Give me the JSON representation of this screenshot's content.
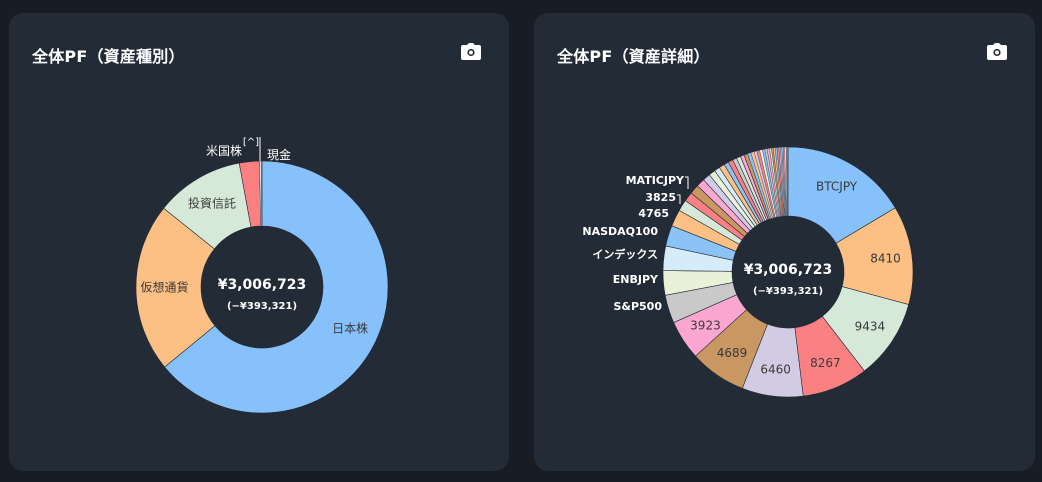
{
  "cards": [
    {
      "title": "全体PF（資産種別）",
      "camera_icon": "camera-icon"
    },
    {
      "title": "全体PF（資産詳細）",
      "camera_icon": "camera-icon"
    }
  ],
  "chart_data": [
    {
      "type": "donut",
      "title": "全体PF（資産種別）",
      "center_label": "¥3,006,723",
      "center_sublabel": "(−¥393,321)",
      "series": [
        {
          "label": "日本株",
          "value": 62.0,
          "color": "#87c1fc"
        },
        {
          "label": "仮想通貨",
          "value": 21.0,
          "color": "#fdc084"
        },
        {
          "label": "投資信託",
          "value": 11.0,
          "color": "#d6e8d8"
        },
        {
          "label": "米国株",
          "value": 2.5,
          "color": "#fb8082"
        },
        {
          "label": "[^]",
          "value": 0.2,
          "color": "#e8e8e8"
        },
        {
          "label": "現金",
          "value": 0.1,
          "color": "#aaaaaa"
        }
      ]
    },
    {
      "type": "donut",
      "title": "全体PF（資産詳細）",
      "center_label": "¥3,006,723",
      "center_sublabel": "(−¥393,321)",
      "series": [
        {
          "label": "BTCJPY",
          "value": 13.5,
          "color": "#87c1fc"
        },
        {
          "label": "8410",
          "value": 10.5,
          "color": "#fdc084"
        },
        {
          "label": "9434",
          "value": 8.5,
          "color": "#d6e8d8"
        },
        {
          "label": "8267",
          "value": 7.0,
          "color": "#fb8082"
        },
        {
          "label": "6460",
          "value": 6.5,
          "color": "#d2cbe4"
        },
        {
          "label": "4689",
          "value": 6.0,
          "color": "#c99762"
        },
        {
          "label": "3923",
          "value": 4.2,
          "color": "#fca6d2"
        },
        {
          "label": "S&P500",
          "value": 3.0,
          "color": "#c9c9c9"
        },
        {
          "label": "ENBJPY",
          "value": 2.6,
          "color": "#e9f2d9"
        },
        {
          "label": "インデックス",
          "value": 2.6,
          "color": "#d6ecf8"
        },
        {
          "label": "NASDAQ100",
          "value": 2.2,
          "color": "#8cc3f6"
        },
        {
          "label": "4765",
          "value": 1.8,
          "color": "#fdc084"
        },
        {
          "label": "",
          "value": 1.2,
          "color": "#d6e8d8"
        },
        {
          "label": "3825",
          "value": 1.0,
          "color": "#fb8082"
        },
        {
          "label": "",
          "value": 1.0,
          "color": "#c99762"
        },
        {
          "label": "MATICJPY",
          "value": 0.9,
          "color": "#fca6d2"
        },
        {
          "label": "",
          "value": 0.8,
          "color": "#d2cbe4"
        },
        {
          "label": "",
          "value": 0.7,
          "color": "#e9f2d9"
        },
        {
          "label": "",
          "value": 0.6,
          "color": "#d6ecf8"
        },
        {
          "label": "",
          "value": 0.6,
          "color": "#fdc084"
        },
        {
          "label": "",
          "value": 0.5,
          "color": "#8cc3f6"
        },
        {
          "label": "",
          "value": 0.5,
          "color": "#fb8082"
        },
        {
          "label": "",
          "value": 0.45,
          "color": "#c9c9c9"
        },
        {
          "label": "",
          "value": 0.45,
          "color": "#d6e8d8"
        },
        {
          "label": "",
          "value": 0.4,
          "color": "#fca6d2"
        },
        {
          "label": "",
          "value": 0.4,
          "color": "#c99762"
        },
        {
          "label": "",
          "value": 0.35,
          "color": "#87c1fc"
        },
        {
          "label": "",
          "value": 0.35,
          "color": "#fdc084"
        },
        {
          "label": "",
          "value": 0.3,
          "color": "#d2cbe4"
        },
        {
          "label": "",
          "value": 0.3,
          "color": "#fb8082"
        },
        {
          "label": "",
          "value": 0.3,
          "color": "#e9f2d9"
        },
        {
          "label": "",
          "value": 0.25,
          "color": "#8cc3f6"
        },
        {
          "label": "",
          "value": 0.25,
          "color": "#c9c9c9"
        },
        {
          "label": "",
          "value": 0.25,
          "color": "#fca6d2"
        },
        {
          "label": "",
          "value": 0.2,
          "color": "#d6e8d8"
        },
        {
          "label": "",
          "value": 0.2,
          "color": "#c99762"
        },
        {
          "label": "",
          "value": 0.2,
          "color": "#fdc084"
        },
        {
          "label": "",
          "value": 0.2,
          "color": "#87c1fc"
        },
        {
          "label": "",
          "value": 0.2,
          "color": "#fb8082"
        },
        {
          "label": "",
          "value": 0.15,
          "color": "#d2cbe4"
        },
        {
          "label": "",
          "value": 0.15,
          "color": "#c9c9c9"
        },
        {
          "label": "",
          "value": 0.15,
          "color": "#8cc3f6"
        },
        {
          "label": "",
          "value": 0.15,
          "color": "#fca6d2"
        },
        {
          "label": "",
          "value": 0.15,
          "color": "#e9f2d9"
        },
        {
          "label": "",
          "value": 0.1,
          "color": "#fdc084"
        },
        {
          "label": "",
          "value": 0.1,
          "color": "#c99762"
        }
      ]
    }
  ]
}
